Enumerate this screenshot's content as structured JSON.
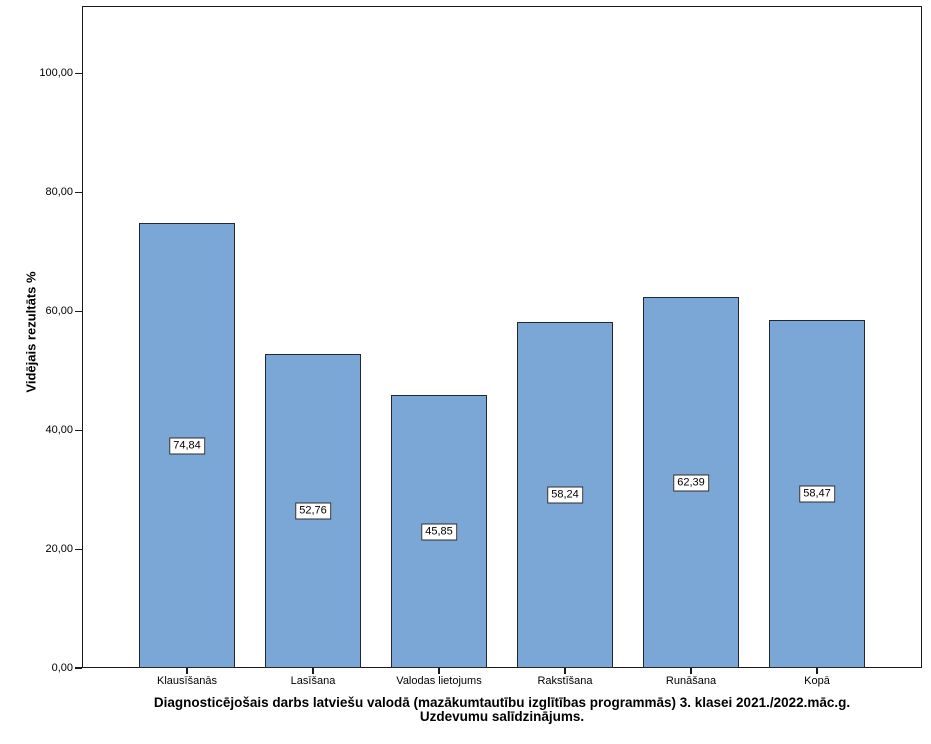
{
  "chart_data": {
    "type": "bar",
    "title": "Diagnosticējošais darbs latviešu valodā (mazākumtautību izglītības programmās) 3. klasei 2021./2022.māc.g.",
    "subtitle": "Uzdevumu salīdzinājums.",
    "categories": [
      "Klausīšanās",
      "Lasīšana",
      "Valodas lietojums",
      "Rakstīšana",
      "Runāšana",
      "Kopā"
    ],
    "values": [
      74.84,
      52.76,
      45.85,
      58.24,
      62.39,
      58.47
    ],
    "value_labels": [
      "74,84",
      "52,76",
      "45,85",
      "58,24",
      "62,39",
      "58,47"
    ],
    "xlabel": "",
    "ylabel": "Vidējais rezultāts %",
    "ylim": [
      0,
      111.4
    ],
    "yticks": [
      0,
      20,
      40,
      60,
      80,
      100
    ],
    "ytick_labels": [
      "0,00",
      "20,00",
      "40,00",
      "60,00",
      "80,00",
      "100,00"
    ],
    "grid": false,
    "legend": false,
    "bar_color": "#7AA7D6",
    "bar_border_color": "#23272E",
    "axis_color": "#1A1A1A",
    "value_label_bg": "#FFFFFF",
    "value_label_border": "#2B2B2B"
  }
}
